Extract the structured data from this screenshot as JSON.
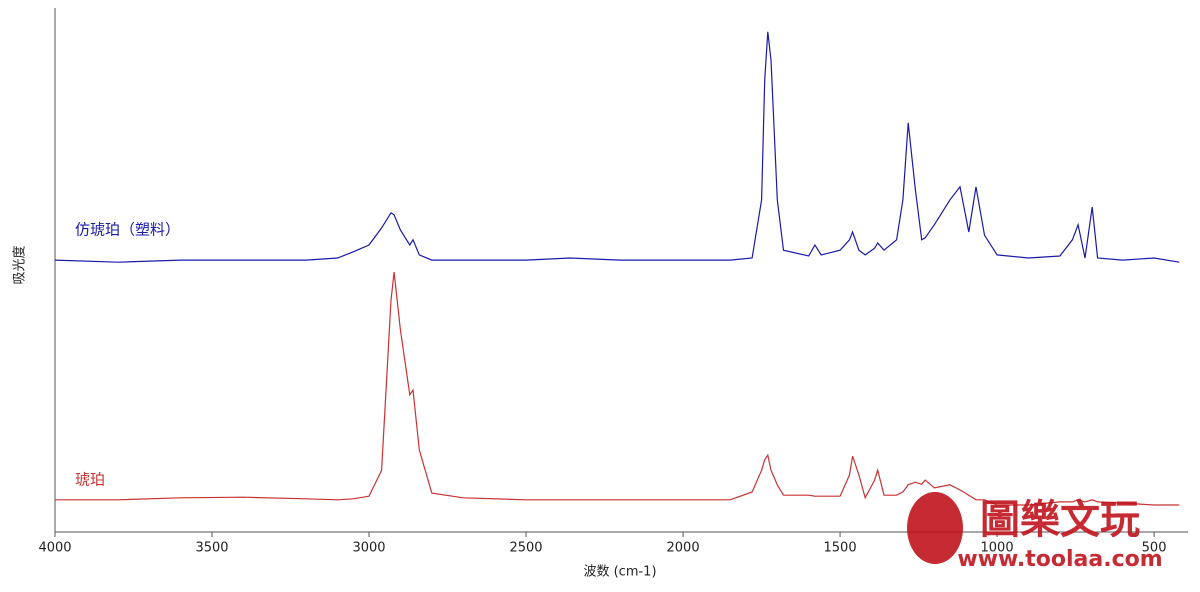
{
  "chart_data": {
    "type": "line",
    "x_label": "波数 (cm-1)",
    "y_label": "吸光度",
    "xlim": [
      4000,
      392
    ],
    "ylim": [
      0,
      1
    ],
    "xticks": [
      4000,
      3500,
      3000,
      2500,
      2000,
      1500,
      1000,
      500
    ],
    "x": [
      4000,
      3800,
      3600,
      3400,
      3200,
      3100,
      3050,
      3000,
      2960,
      2930,
      2920,
      2900,
      2870,
      2860,
      2840,
      2800,
      2700,
      2500,
      2360,
      2200,
      2000,
      1850,
      1780,
      1750,
      1740,
      1730,
      1720,
      1700,
      1680,
      1600,
      1580,
      1560,
      1500,
      1470,
      1460,
      1440,
      1420,
      1390,
      1380,
      1360,
      1320,
      1300,
      1283,
      1260,
      1240,
      1229,
      1200,
      1150,
      1118,
      1090,
      1067,
      1040,
      1000,
      900,
      800,
      760,
      742,
      720,
      697,
      680,
      600,
      500,
      420
    ],
    "series": [
      {
        "name": "仿琥珀（塑料）",
        "color": "#1a1aa8",
        "values": [
          0.519,
          0.515,
          0.519,
          0.519,
          0.519,
          0.523,
          0.535,
          0.548,
          0.581,
          0.61,
          0.606,
          0.577,
          0.548,
          0.558,
          0.529,
          0.519,
          0.519,
          0.519,
          0.523,
          0.519,
          0.519,
          0.519,
          0.523,
          0.635,
          0.865,
          0.958,
          0.904,
          0.635,
          0.538,
          0.527,
          0.548,
          0.529,
          0.538,
          0.558,
          0.573,
          0.538,
          0.529,
          0.542,
          0.552,
          0.538,
          0.558,
          0.635,
          0.783,
          0.654,
          0.558,
          0.562,
          0.587,
          0.635,
          0.66,
          0.573,
          0.66,
          0.567,
          0.529,
          0.523,
          0.527,
          0.558,
          0.587,
          0.523,
          0.621,
          0.523,
          0.519,
          0.523,
          0.515
        ]
      },
      {
        "name": "琥珀",
        "color": "#c83232",
        "values": [
          0.058,
          0.058,
          0.062,
          0.063,
          0.06,
          0.058,
          0.06,
          0.065,
          0.115,
          0.442,
          0.496,
          0.385,
          0.26,
          0.269,
          0.154,
          0.071,
          0.062,
          0.058,
          0.058,
          0.058,
          0.058,
          0.058,
          0.073,
          0.115,
          0.135,
          0.144,
          0.115,
          0.087,
          0.067,
          0.067,
          0.065,
          0.065,
          0.065,
          0.106,
          0.142,
          0.106,
          0.062,
          0.096,
          0.115,
          0.067,
          0.067,
          0.073,
          0.087,
          0.092,
          0.088,
          0.096,
          0.081,
          0.087,
          0.077,
          0.067,
          0.058,
          0.058,
          0.048,
          0.048,
          0.054,
          0.054,
          0.058,
          0.054,
          0.058,
          0.054,
          0.052,
          0.048,
          0.048
        ]
      }
    ]
  },
  "watermark": {
    "title": "圖樂文玩",
    "url": "www.toolaa.com"
  }
}
